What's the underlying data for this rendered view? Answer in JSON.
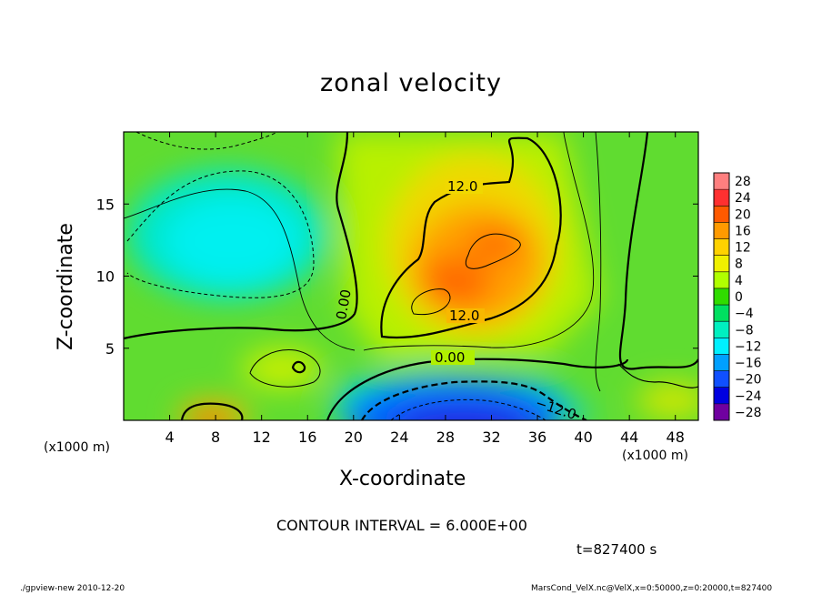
{
  "chart_data": {
    "type": "heatmap",
    "title": "zonal velocity",
    "xlabel": "X-coordinate",
    "ylabel": "Z-coordinate",
    "x_unit_label_left": "(x1000 m)",
    "x_unit_label_right": "(x1000 m)",
    "x_ticks": [
      4,
      8,
      12,
      16,
      20,
      24,
      28,
      32,
      36,
      40,
      44,
      48
    ],
    "y_ticks": [
      5,
      10,
      15
    ],
    "xlim": [
      0,
      50
    ],
    "ylim": [
      0,
      20
    ],
    "colorbar_levels": [
      28,
      24,
      20,
      16,
      12,
      8,
      4,
      0,
      -4,
      -8,
      -12,
      -16,
      -20,
      -24,
      -28
    ],
    "colorbar_labels": [
      "28",
      "24",
      "20",
      "16",
      "12",
      "8",
      "4",
      "0",
      "−4",
      "−8",
      "−12",
      "−16",
      "−20",
      "−24",
      "−28"
    ],
    "colorbar_colors": [
      "#ff7f7f",
      "#ff3030",
      "#ff5a00",
      "#ff9a00",
      "#ffd200",
      "#f0f000",
      "#b0ff00",
      "#30dc00",
      "#00e060",
      "#00f0c0",
      "#00f0ff",
      "#00a0ff",
      "#1050ff",
      "#0000e0",
      "#7000a0"
    ],
    "contour_labels": [
      "12.0",
      "12.0",
      "0.00",
      "0.00",
      "−12.0"
    ],
    "contour_interval_text": "CONTOUR INTERVAL = 6.000E+00",
    "time_text": "t=827400 s"
  },
  "footer": {
    "left": "./gpview-new   2010-12-20",
    "right": "MarsCond_VelX.nc@VelX,x=0:50000,z=0:20000,t=827400"
  }
}
